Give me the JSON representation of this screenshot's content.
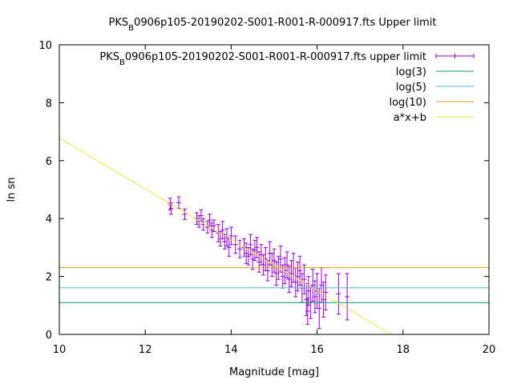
{
  "chart_data": {
    "type": "scatter",
    "title_main": "PKS",
    "title_sub": "B",
    "title_rest": "0906p105-20190202-S001-R001-R-000917.fts Upper limit",
    "xlabel": "Magnitude [mag]",
    "ylabel": "ln sn",
    "xlim": [
      10,
      20
    ],
    "ylim": [
      0,
      10
    ],
    "xticks": [
      10,
      12,
      14,
      16,
      18,
      20
    ],
    "yticks": [
      0,
      2,
      4,
      6,
      8,
      10
    ],
    "grid": false,
    "legend_position": "top-right",
    "series": [
      {
        "name_main": "PKS",
        "name_sub": "B",
        "name_rest": "0906p105-20190202-S001-R001-R-000917.fts upper limit",
        "kind": "errorbar",
        "color": "#9400d3",
        "points": [
          {
            "x": 12.58,
            "y": 4.5,
            "err": 0.2
          },
          {
            "x": 12.6,
            "y": 4.35,
            "err": 0.2
          },
          {
            "x": 12.78,
            "y": 4.55,
            "err": 0.2
          },
          {
            "x": 12.92,
            "y": 4.15,
            "err": 0.18
          },
          {
            "x": 13.2,
            "y": 4.0,
            "err": 0.2
          },
          {
            "x": 13.25,
            "y": 3.9,
            "err": 0.2
          },
          {
            "x": 13.3,
            "y": 4.1,
            "err": 0.2
          },
          {
            "x": 13.35,
            "y": 3.8,
            "err": 0.2
          },
          {
            "x": 13.45,
            "y": 3.7,
            "err": 0.2
          },
          {
            "x": 13.5,
            "y": 3.95,
            "err": 0.2
          },
          {
            "x": 13.55,
            "y": 3.6,
            "err": 0.25
          },
          {
            "x": 13.6,
            "y": 3.75,
            "err": 0.2
          },
          {
            "x": 13.7,
            "y": 3.5,
            "err": 0.3
          },
          {
            "x": 13.75,
            "y": 3.3,
            "err": 0.25
          },
          {
            "x": 13.8,
            "y": 3.6,
            "err": 0.3
          },
          {
            "x": 13.85,
            "y": 3.2,
            "err": 0.25
          },
          {
            "x": 13.9,
            "y": 3.35,
            "err": 0.3
          },
          {
            "x": 13.95,
            "y": 3.0,
            "err": 0.3
          },
          {
            "x": 14.0,
            "y": 3.4,
            "err": 0.3
          },
          {
            "x": 14.1,
            "y": 3.1,
            "err": 0.3
          },
          {
            "x": 14.2,
            "y": 2.95,
            "err": 0.3
          },
          {
            "x": 14.3,
            "y": 3.0,
            "err": 0.3
          },
          {
            "x": 14.35,
            "y": 2.8,
            "err": 0.35
          },
          {
            "x": 14.4,
            "y": 2.7,
            "err": 0.3
          },
          {
            "x": 14.45,
            "y": 3.1,
            "err": 0.35
          },
          {
            "x": 14.5,
            "y": 2.6,
            "err": 0.35
          },
          {
            "x": 14.55,
            "y": 2.9,
            "err": 0.35
          },
          {
            "x": 14.6,
            "y": 3.0,
            "err": 0.35
          },
          {
            "x": 14.65,
            "y": 2.5,
            "err": 0.35
          },
          {
            "x": 14.7,
            "y": 2.75,
            "err": 0.35
          },
          {
            "x": 14.75,
            "y": 2.4,
            "err": 0.35
          },
          {
            "x": 14.8,
            "y": 2.6,
            "err": 0.4
          },
          {
            "x": 14.85,
            "y": 2.2,
            "err": 0.35
          },
          {
            "x": 14.9,
            "y": 2.8,
            "err": 0.4
          },
          {
            "x": 14.95,
            "y": 2.4,
            "err": 0.4
          },
          {
            "x": 15.0,
            "y": 2.55,
            "err": 0.4
          },
          {
            "x": 15.05,
            "y": 2.1,
            "err": 0.4
          },
          {
            "x": 15.1,
            "y": 2.3,
            "err": 0.4
          },
          {
            "x": 15.15,
            "y": 2.6,
            "err": 0.45
          },
          {
            "x": 15.2,
            "y": 2.0,
            "err": 0.4
          },
          {
            "x": 15.25,
            "y": 2.2,
            "err": 0.45
          },
          {
            "x": 15.3,
            "y": 2.4,
            "err": 0.45
          },
          {
            "x": 15.35,
            "y": 1.9,
            "err": 0.45
          },
          {
            "x": 15.4,
            "y": 2.1,
            "err": 0.45
          },
          {
            "x": 15.45,
            "y": 2.3,
            "err": 0.5
          },
          {
            "x": 15.5,
            "y": 1.8,
            "err": 0.5
          },
          {
            "x": 15.55,
            "y": 2.0,
            "err": 0.5
          },
          {
            "x": 15.6,
            "y": 2.2,
            "err": 0.5
          },
          {
            "x": 15.65,
            "y": 1.6,
            "err": 0.5
          },
          {
            "x": 15.7,
            "y": 1.9,
            "err": 0.5
          },
          {
            "x": 15.75,
            "y": 1.2,
            "err": 0.55
          },
          {
            "x": 15.78,
            "y": 0.8,
            "err": 0.45
          },
          {
            "x": 15.8,
            "y": 1.5,
            "err": 0.5
          },
          {
            "x": 15.85,
            "y": 1.1,
            "err": 0.55
          },
          {
            "x": 15.9,
            "y": 1.7,
            "err": 0.55
          },
          {
            "x": 15.95,
            "y": 1.3,
            "err": 0.55
          },
          {
            "x": 16.0,
            "y": 1.5,
            "err": 0.6
          },
          {
            "x": 16.05,
            "y": 0.9,
            "err": 0.7
          },
          {
            "x": 16.1,
            "y": 1.7,
            "err": 0.6
          },
          {
            "x": 16.15,
            "y": 1.2,
            "err": 0.6
          },
          {
            "x": 16.2,
            "y": 1.45,
            "err": 0.6
          },
          {
            "x": 16.5,
            "y": 1.4,
            "err": 0.7
          },
          {
            "x": 16.7,
            "y": 1.3,
            "err": 0.8
          }
        ]
      },
      {
        "name": "log(3)",
        "kind": "hline",
        "y": 1.0986,
        "color": "#009e73"
      },
      {
        "name": "log(5)",
        "kind": "hline",
        "y": 1.6094,
        "color": "#56b4e9"
      },
      {
        "name": "log(10)",
        "kind": "hline",
        "y": 2.3026,
        "color": "#e69f00"
      },
      {
        "name": "a*x+b",
        "kind": "line",
        "color": "#f0e442",
        "x": [
          10,
          17.72
        ],
        "y": [
          6.78,
          0
        ]
      }
    ]
  }
}
